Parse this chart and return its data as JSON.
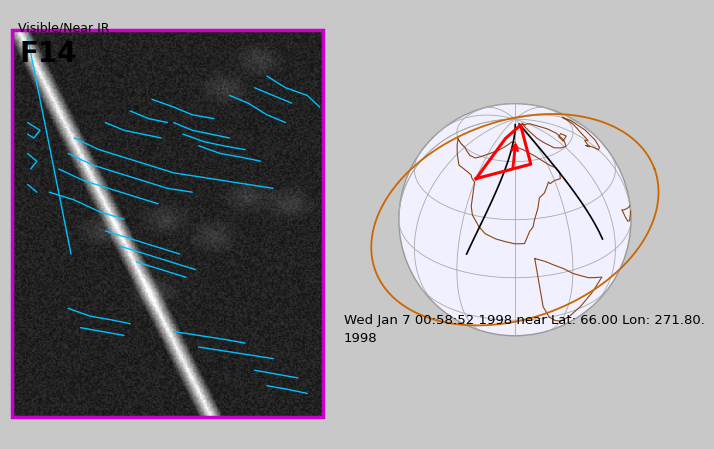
{
  "bg_color": "#c8c8c8",
  "left_panel_border_color": "#cc00cc",
  "label_visible": "Visible/Near IR",
  "label_f14": "F14",
  "caption_line1": "Wed Jan 7 00:58:52 1998 near Lat: 66.00 Lon: 271.80.",
  "caption_line2": "1998",
  "coast_color": "#8B4513",
  "orbit_color": "#cc6600",
  "grid_color": "#aaaaaa",
  "track_color": "#000000",
  "swath_color": "#ff0000",
  "cyan_color": "#00bfff"
}
